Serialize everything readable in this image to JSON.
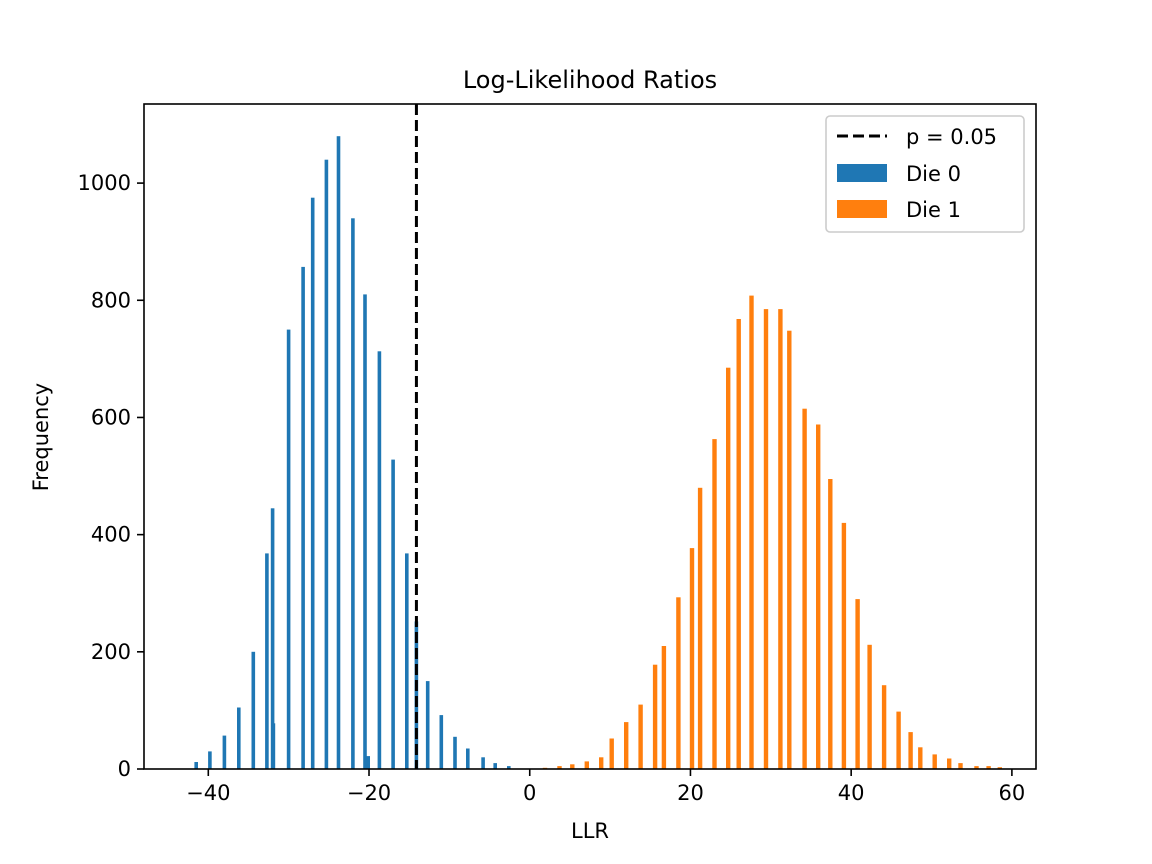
{
  "chart_data": {
    "type": "bar",
    "title": "Log-Likelihood Ratios",
    "xlabel": "LLR",
    "ylabel": "Frequency",
    "xlim": [
      -48,
      63
    ],
    "ylim": [
      0,
      1135
    ],
    "xticks": [
      -40,
      -20,
      0,
      20,
      40,
      60
    ],
    "yticks": [
      0,
      200,
      400,
      600,
      800,
      1000
    ],
    "grid": false,
    "legend_position": "top-right",
    "threshold": {
      "label": "p = 0.05",
      "x": -14.1,
      "color": "#000000",
      "style": "dashed"
    },
    "series": [
      {
        "name": "Die 0",
        "color": "#1f77b4",
        "bar_width": 0.45,
        "points": [
          [
            -41.5,
            12
          ],
          [
            -39.8,
            30
          ],
          [
            -38.0,
            57
          ],
          [
            -36.2,
            105
          ],
          [
            -34.4,
            200
          ],
          [
            -32.7,
            368
          ],
          [
            -31.9,
            78
          ],
          [
            -32.0,
            445
          ],
          [
            -30.0,
            750
          ],
          [
            -28.2,
            857
          ],
          [
            -27.0,
            975
          ],
          [
            -25.3,
            1040
          ],
          [
            -23.8,
            1080
          ],
          [
            -22.0,
            940
          ],
          [
            -20.5,
            810
          ],
          [
            -20.1,
            22
          ],
          [
            -18.7,
            713
          ],
          [
            -17.0,
            528
          ],
          [
            -15.3,
            368
          ],
          [
            -14.1,
            252
          ],
          [
            -12.7,
            150
          ],
          [
            -11.0,
            92
          ],
          [
            -9.3,
            55
          ],
          [
            -7.7,
            35
          ],
          [
            -5.8,
            20
          ],
          [
            -4.3,
            10
          ],
          [
            -2.6,
            5
          ]
        ]
      },
      {
        "name": "Die 1",
        "color": "#ff7f0e",
        "bar_width": 0.55,
        "points": [
          [
            1.9,
            2
          ],
          [
            3.7,
            5
          ],
          [
            5.3,
            8
          ],
          [
            7.1,
            13
          ],
          [
            8.9,
            20
          ],
          [
            10.2,
            52
          ],
          [
            12.0,
            80
          ],
          [
            13.8,
            110
          ],
          [
            15.6,
            178
          ],
          [
            16.7,
            210
          ],
          [
            18.5,
            293
          ],
          [
            20.2,
            377
          ],
          [
            21.2,
            480
          ],
          [
            23.0,
            563
          ],
          [
            24.7,
            685
          ],
          [
            26.0,
            768
          ],
          [
            27.6,
            808
          ],
          [
            29.4,
            785
          ],
          [
            31.2,
            785
          ],
          [
            32.3,
            748
          ],
          [
            34.2,
            615
          ],
          [
            35.9,
            588
          ],
          [
            37.4,
            495
          ],
          [
            39.1,
            420
          ],
          [
            40.8,
            290
          ],
          [
            42.3,
            212
          ],
          [
            44.1,
            143
          ],
          [
            45.9,
            98
          ],
          [
            47.4,
            63
          ],
          [
            48.6,
            37
          ],
          [
            50.4,
            25
          ],
          [
            52.2,
            18
          ],
          [
            53.6,
            10
          ],
          [
            55.6,
            5
          ],
          [
            57.1,
            5
          ],
          [
            58.5,
            3
          ]
        ]
      }
    ]
  }
}
